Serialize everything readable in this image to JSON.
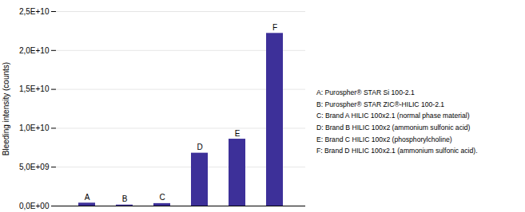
{
  "chart_data": {
    "type": "bar",
    "categories": [
      "A",
      "B",
      "C",
      "D",
      "E",
      "F"
    ],
    "values": [
      380000000.0,
      130000000.0,
      320000000.0,
      6800000000.0,
      8600000000.0,
      22200000000.0
    ],
    "color": "#3d3099",
    "ylabel": "Bleeding intensity (counts)",
    "ylim": [
      0,
      25000000000.0
    ],
    "yticks": [
      {
        "value": 0,
        "label": "0,0E+00"
      },
      {
        "value": 5000000000.0,
        "label": "5,0E+09"
      },
      {
        "value": 10000000000.0,
        "label": "1,0E+10"
      },
      {
        "value": 15000000000.0,
        "label": "1,5E+10"
      },
      {
        "value": 20000000000.0,
        "label": "2,0E+10"
      },
      {
        "value": 25000000000.0,
        "label": "2,5E+10"
      }
    ],
    "grid": true,
    "tick_labels": "y",
    "annotations": [
      "A: Purospher® STAR Si 100-2.1",
      "B: Purospher® STAR ZIC®-HILIC 100-2.1",
      "C: Brand A HILIC 100x2.1 (normal phase material)",
      "D: Brand B HILIC 100x2 (ammonium sulfonic acid)",
      "E: Brand C HILIC 100x2 (phosphorylcholine)",
      "F: Brand D HILIC 100x2.1 (ammonium sulfonic acid)."
    ]
  }
}
